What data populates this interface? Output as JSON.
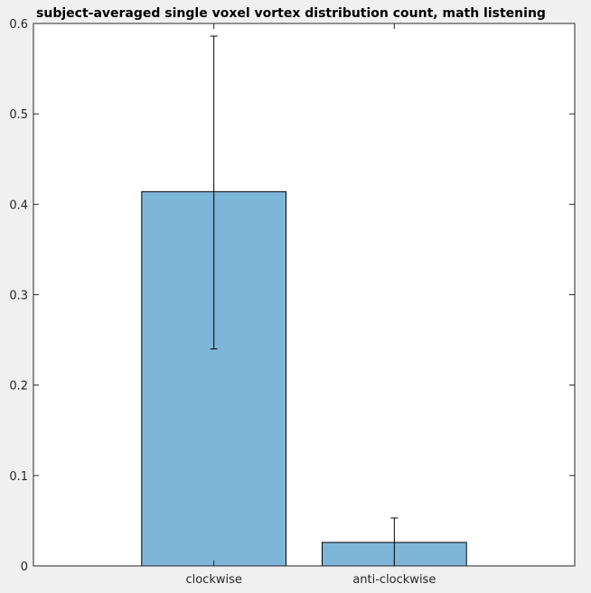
{
  "chart_data": {
    "type": "bar",
    "title": "subject-averaged single voxel vortex distribution count, math listening",
    "xlabel": "",
    "ylabel": "",
    "categories": [
      "clockwise",
      "anti-clockwise"
    ],
    "values": [
      0.414,
      0.026
    ],
    "error_low": [
      0.24,
      0.0
    ],
    "error_high": [
      0.586,
      0.053
    ],
    "ylim": [
      0,
      0.6
    ],
    "yticks": [
      0,
      0.1,
      0.2,
      0.3,
      0.4,
      0.5,
      0.6
    ],
    "ytick_labels": [
      "0",
      "0.1",
      "0.2",
      "0.3",
      "0.4",
      "0.5",
      "0.6"
    ],
    "grid": false,
    "bar_color": "#7eb6da",
    "background": "#ffffff",
    "figure_background": "#f0f0f0"
  }
}
